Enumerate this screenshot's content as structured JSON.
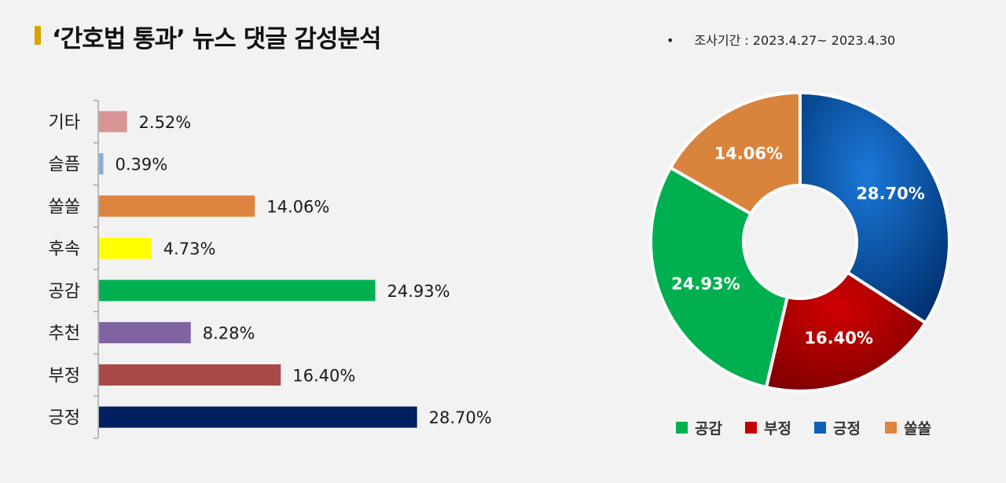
{
  "header": {
    "title": "‘간호법 통과’ 뉴스 댓글 감성분석",
    "period_bullet": "•",
    "period": "조사기간 : 2023.4.27~ 2023.4.30"
  },
  "chart_data": [
    {
      "type": "bar",
      "orientation": "horizontal",
      "categories": [
        "기타",
        "슬픔",
        "쏠쏠",
        "후속",
        "공감",
        "추천",
        "부정",
        "긍정"
      ],
      "values": [
        2.52,
        0.39,
        14.06,
        4.73,
        24.93,
        8.28,
        16.4,
        28.7
      ],
      "value_labels": [
        "2.52%",
        "0.39%",
        "14.06%",
        "4.73%",
        "24.93%",
        "8.28%",
        "16.40%",
        "28.70%"
      ],
      "colors": [
        "#d99594",
        "#8eaadb",
        "#dd8440",
        "#ffff00",
        "#00b050",
        "#8064a2",
        "#a84848",
        "#002060"
      ],
      "unit": "%",
      "grid": false
    },
    {
      "type": "pie",
      "style": "donut",
      "start": "12 o'clock, clockwise",
      "categories": [
        "긍정",
        "부정",
        "공감",
        "쏠쏠"
      ],
      "values": [
        28.7,
        16.4,
        24.93,
        14.06
      ],
      "value_labels": [
        "28.70%",
        "16.40%",
        "24.93%",
        "14.06%"
      ],
      "colors": [
        "#0d4fa3",
        "#b30000",
        "#00b050",
        "#d9843d"
      ],
      "legend": {
        "placement": "bottom",
        "order": [
          "공감",
          "부정",
          "긍정",
          "쏠쏠"
        ],
        "colors": [
          "#00b050",
          "#c00000",
          "#0f5fb8",
          "#dd8440"
        ]
      }
    }
  ]
}
